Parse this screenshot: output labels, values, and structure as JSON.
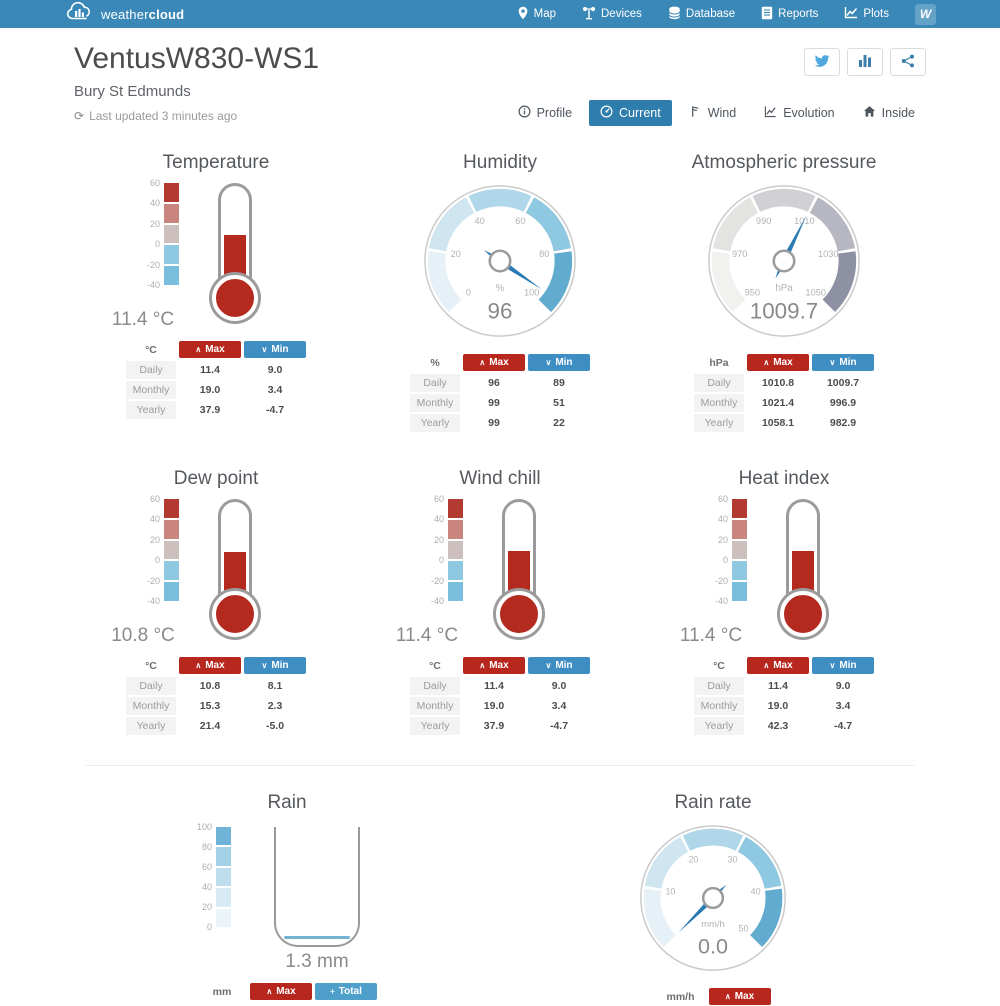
{
  "navbar": {
    "brand_weather": "weather",
    "brand_cloud": "cloud",
    "items": [
      {
        "label": "Map",
        "icon": "map-pin-icon"
      },
      {
        "label": "Devices",
        "icon": "station-icon"
      },
      {
        "label": "Database",
        "icon": "database-icon"
      },
      {
        "label": "Reports",
        "icon": "report-icon"
      },
      {
        "label": "Plots",
        "icon": "plots-icon"
      }
    ],
    "avatar_letter": "W"
  },
  "header": {
    "title": "VentusW830-WS1",
    "subtitle": "Bury St Edmunds",
    "last_updated": "Last updated 3 minutes ago",
    "actions": [
      "twitter",
      "stats",
      "share"
    ],
    "tabs": [
      {
        "label": "Profile",
        "icon": "info-icon",
        "active": false
      },
      {
        "label": "Current",
        "icon": "gauge-icon",
        "active": true
      },
      {
        "label": "Wind",
        "icon": "wind-flag-icon",
        "active": false
      },
      {
        "label": "Evolution",
        "icon": "line-chart-icon",
        "active": false
      },
      {
        "label": "Inside",
        "icon": "home-icon",
        "active": false
      }
    ]
  },
  "colors": {
    "navbar_bg": "#3a88b8",
    "active_tab": "#2f7dad",
    "max_red": "#b7271d",
    "min_blue": "#3e8ec4",
    "total_blue": "#4f9fcb",
    "needle_blue": "#2a7ab3",
    "thermo_red": "#b52a1e"
  },
  "palettes": {
    "thermo_scale_top_to_bottom": [
      "#b23a31",
      "#c9847d",
      "#cdbfbe",
      "#8fc8e1",
      "#7abedd"
    ],
    "gauge_blue_low_to_high": [
      "#e6f1f7",
      "#cfe5f0",
      "#b0d7e9",
      "#8ec8e1",
      "#61abce"
    ],
    "gauge_gray_low_to_high": [
      "#f1f1ef",
      "#e3e3e2",
      "#d1d1d5",
      "#b7b7c1",
      "#8e90a4"
    ],
    "rain_scale_top_to_bottom": [
      "#6fb4d6",
      "#a3d1e6",
      "#bfdeed",
      "#d8eaf3",
      "#eaf4f9"
    ]
  },
  "modules": [
    {
      "type": "thermometer",
      "section": "main",
      "title": "Temperature",
      "unit": "°C",
      "value": "11.4",
      "numeric_value": 11.4,
      "scale": {
        "min": -40,
        "max": 60,
        "ticks": [
          60,
          40,
          20,
          0,
          -20,
          -40
        ]
      },
      "table": {
        "unit": "°C",
        "columns": [
          "Max",
          "Min"
        ],
        "rows": [
          {
            "label": "Daily",
            "values": [
              "11.4",
              "9.0"
            ]
          },
          {
            "label": "Monthly",
            "values": [
              "19.0",
              "3.4"
            ]
          },
          {
            "label": "Yearly",
            "values": [
              "37.9",
              "-4.7"
            ]
          }
        ]
      }
    },
    {
      "type": "gauge",
      "section": "main",
      "title": "Humidity",
      "unit": "%",
      "value": "96",
      "numeric_value": 96,
      "palette": "blue",
      "size": 156,
      "scale": {
        "min": 0,
        "max": 100,
        "ticks": [
          0,
          20,
          40,
          60,
          80,
          100
        ]
      },
      "table": {
        "unit": "%",
        "columns": [
          "Max",
          "Min"
        ],
        "rows": [
          {
            "label": "Daily",
            "values": [
              "96",
              "89"
            ]
          },
          {
            "label": "Monthly",
            "values": [
              "99",
              "51"
            ]
          },
          {
            "label": "Yearly",
            "values": [
              "99",
              "22"
            ]
          }
        ]
      }
    },
    {
      "type": "gauge",
      "section": "main",
      "title": "Atmospheric pressure",
      "unit": "hPa",
      "value": "1009.7",
      "numeric_value": 1009.7,
      "palette": "gray",
      "size": 156,
      "scale": {
        "min": 950,
        "max": 1050,
        "ticks": [
          950,
          970,
          990,
          1010,
          1030,
          1050
        ]
      },
      "table": {
        "unit": "hPa",
        "columns": [
          "Max",
          "Min"
        ],
        "rows": [
          {
            "label": "Daily",
            "values": [
              "1010.8",
              "1009.7"
            ]
          },
          {
            "label": "Monthly",
            "values": [
              "1021.4",
              "996.9"
            ]
          },
          {
            "label": "Yearly",
            "values": [
              "1058.1",
              "982.9"
            ]
          }
        ]
      }
    },
    {
      "type": "thermometer",
      "section": "main",
      "title": "Dew point",
      "unit": "°C",
      "value": "10.8",
      "numeric_value": 10.8,
      "scale": {
        "min": -40,
        "max": 60,
        "ticks": [
          60,
          40,
          20,
          0,
          -20,
          -40
        ]
      },
      "table": {
        "unit": "°C",
        "columns": [
          "Max",
          "Min"
        ],
        "rows": [
          {
            "label": "Daily",
            "values": [
              "10.8",
              "8.1"
            ]
          },
          {
            "label": "Monthly",
            "values": [
              "15.3",
              "2.3"
            ]
          },
          {
            "label": "Yearly",
            "values": [
              "21.4",
              "-5.0"
            ]
          }
        ]
      }
    },
    {
      "type": "thermometer",
      "section": "main",
      "title": "Wind chill",
      "unit": "°C",
      "value": "11.4",
      "numeric_value": 11.4,
      "scale": {
        "min": -40,
        "max": 60,
        "ticks": [
          60,
          40,
          20,
          0,
          -20,
          -40
        ]
      },
      "table": {
        "unit": "°C",
        "columns": [
          "Max",
          "Min"
        ],
        "rows": [
          {
            "label": "Daily",
            "values": [
              "11.4",
              "9.0"
            ]
          },
          {
            "label": "Monthly",
            "values": [
              "19.0",
              "3.4"
            ]
          },
          {
            "label": "Yearly",
            "values": [
              "37.9",
              "-4.7"
            ]
          }
        ]
      }
    },
    {
      "type": "thermometer",
      "section": "main",
      "title": "Heat index",
      "unit": "°C",
      "value": "11.4",
      "numeric_value": 11.4,
      "scale": {
        "min": -40,
        "max": 60,
        "ticks": [
          60,
          40,
          20,
          0,
          -20,
          -40
        ]
      },
      "table": {
        "unit": "°C",
        "columns": [
          "Max",
          "Min"
        ],
        "rows": [
          {
            "label": "Daily",
            "values": [
              "11.4",
              "9.0"
            ]
          },
          {
            "label": "Monthly",
            "values": [
              "19.0",
              "3.4"
            ]
          },
          {
            "label": "Yearly",
            "values": [
              "42.3",
              "-4.7"
            ]
          }
        ]
      }
    },
    {
      "type": "beaker",
      "section": "rain",
      "title": "Rain",
      "unit": "mm",
      "value": "1.3",
      "numeric_value": 1.3,
      "scale": {
        "min": 0,
        "max": 100,
        "ticks": [
          100,
          80,
          60,
          40,
          20,
          0
        ]
      },
      "table": {
        "unit": "mm",
        "columns": [
          "Max",
          "Total"
        ],
        "rows": []
      }
    },
    {
      "type": "gauge",
      "section": "rain",
      "title": "Rain rate",
      "unit": "mm/h",
      "value": "0.0",
      "numeric_value": 0,
      "palette": "blue",
      "size": 150,
      "scale": {
        "min": 0,
        "max": 50,
        "ticks": [
          10,
          20,
          30,
          40,
          50
        ]
      },
      "table": {
        "unit": "mm/h",
        "columns": [
          "Max"
        ],
        "rows": []
      }
    }
  ]
}
